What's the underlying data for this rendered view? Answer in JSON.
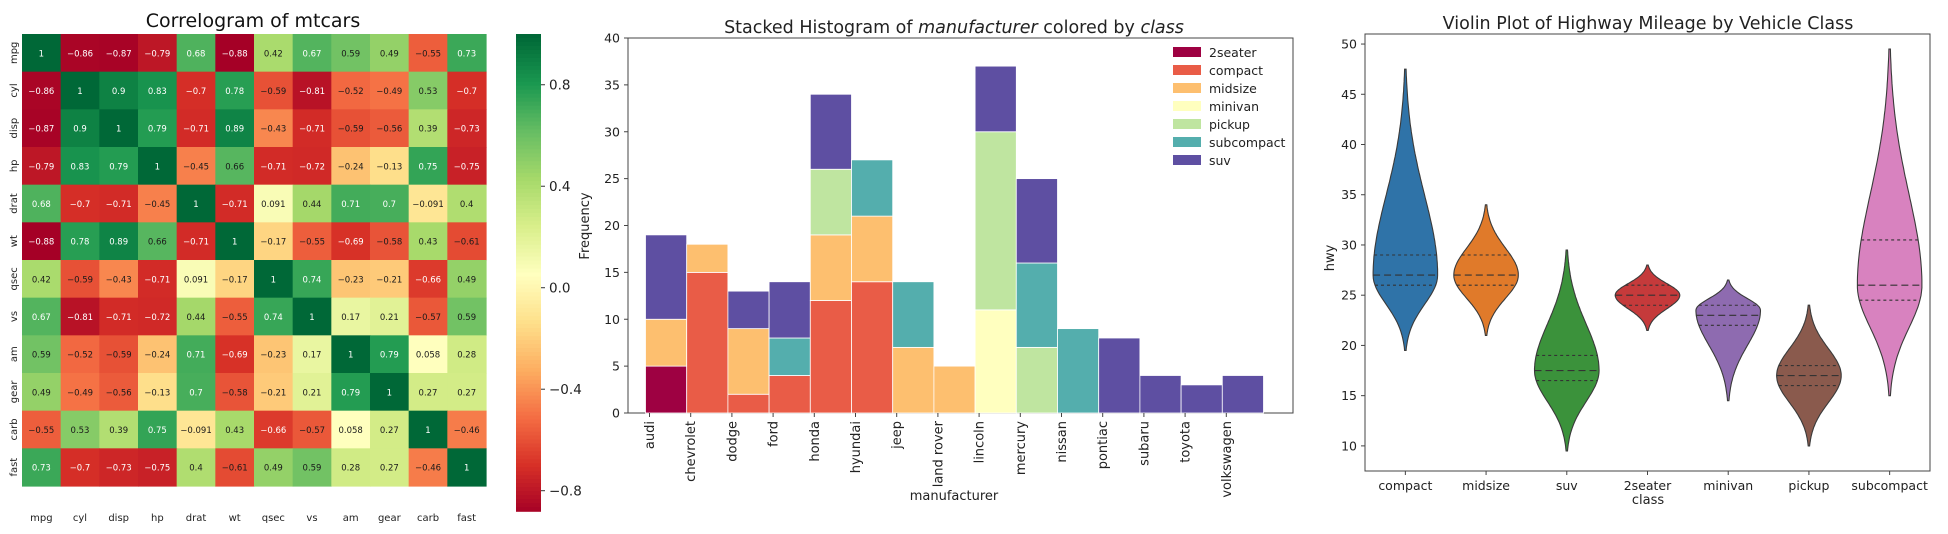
{
  "chart_data": [
    {
      "type": "heatmap",
      "title": "Correlogram of mtcars",
      "variables": [
        "mpg",
        "cyl",
        "disp",
        "hp",
        "drat",
        "wt",
        "qsec",
        "vs",
        "am",
        "gear",
        "carb",
        "fast"
      ],
      "matrix": [
        [
          1,
          -0.86,
          -0.87,
          -0.79,
          0.68,
          -0.88,
          0.42,
          0.67,
          0.59,
          0.49,
          -0.55,
          0.73
        ],
        [
          -0.86,
          1,
          0.9,
          0.83,
          -0.7,
          0.78,
          -0.59,
          -0.81,
          -0.52,
          -0.49,
          0.53,
          -0.7
        ],
        [
          -0.87,
          0.9,
          1,
          0.79,
          -0.71,
          0.89,
          -0.43,
          -0.71,
          -0.59,
          -0.56,
          0.39,
          -0.73
        ],
        [
          -0.79,
          0.83,
          0.79,
          1,
          -0.45,
          0.66,
          -0.71,
          -0.72,
          -0.24,
          -0.13,
          0.75,
          -0.75
        ],
        [
          0.68,
          -0.7,
          -0.71,
          -0.45,
          1,
          -0.71,
          0.091,
          0.44,
          0.71,
          0.7,
          -0.091,
          0.4
        ],
        [
          -0.88,
          0.78,
          0.89,
          0.66,
          -0.71,
          1,
          -0.17,
          -0.55,
          -0.69,
          -0.58,
          0.43,
          -0.61
        ],
        [
          0.42,
          -0.59,
          -0.43,
          -0.71,
          0.091,
          -0.17,
          1,
          0.74,
          -0.23,
          -0.21,
          -0.66,
          0.49
        ],
        [
          0.67,
          -0.81,
          -0.71,
          -0.72,
          0.44,
          -0.55,
          0.74,
          1,
          0.17,
          0.21,
          -0.57,
          0.59
        ],
        [
          0.59,
          -0.52,
          -0.59,
          -0.24,
          0.71,
          -0.69,
          -0.23,
          0.17,
          1,
          0.79,
          0.058,
          0.28
        ],
        [
          0.49,
          -0.49,
          -0.56,
          -0.13,
          0.7,
          -0.58,
          -0.21,
          0.21,
          0.79,
          1,
          0.27,
          0.27
        ],
        [
          -0.55,
          0.53,
          0.39,
          0.75,
          -0.091,
          0.43,
          -0.66,
          -0.57,
          0.058,
          0.27,
          1,
          -0.46
        ],
        [
          0.73,
          -0.7,
          -0.73,
          -0.75,
          0.4,
          -0.61,
          0.49,
          0.59,
          0.28,
          0.27,
          -0.46,
          1
        ]
      ],
      "colormap": "RdYlGn",
      "vmin": -0.88,
      "vmax": 1,
      "colorbar_ticks": [
        0.8,
        0.4,
        0.0,
        -0.4,
        -0.8
      ],
      "colorbar_tick_labels": [
        "0.8",
        "0.4",
        "0.0",
        "−0.4",
        "−0.8"
      ]
    },
    {
      "type": "bar",
      "stacked": true,
      "title_parts": [
        {
          "text": "Stacked Histogram of ",
          "italic": false
        },
        {
          "text": "manufacturer",
          "italic": true
        },
        {
          "text": " colored by ",
          "italic": false
        },
        {
          "text": "class",
          "italic": true
        }
      ],
      "xlabel": "manufacturer",
      "ylabel": "Frequency",
      "ylim": [
        0,
        40
      ],
      "yticks": [
        0,
        5,
        10,
        15,
        20,
        25,
        30,
        35,
        40
      ],
      "categories": [
        "audi",
        "chevrolet",
        "dodge",
        "ford",
        "honda",
        "hyundai",
        "jeep",
        "land rover",
        "lincoln",
        "mercury",
        "nissan",
        "pontiac",
        "subaru",
        "toyota",
        "volkswagen"
      ],
      "series": [
        {
          "name": "2seater",
          "color": "#9e0142",
          "values": [
            5,
            0,
            0,
            0,
            0,
            0,
            0,
            0,
            0,
            0,
            0,
            0,
            0,
            0,
            0
          ]
        },
        {
          "name": "compact",
          "color": "#e95c47",
          "values": [
            0,
            15,
            2,
            4,
            12,
            14,
            0,
            0,
            0,
            0,
            0,
            0,
            0,
            0,
            0
          ]
        },
        {
          "name": "midsize",
          "color": "#fdbf6f",
          "values": [
            5,
            3,
            7,
            0,
            7,
            7,
            7,
            5,
            0,
            0,
            0,
            0,
            0,
            0,
            0
          ]
        },
        {
          "name": "minivan",
          "color": "#ffffbf",
          "values": [
            0,
            0,
            0,
            0,
            0,
            0,
            0,
            0,
            11,
            0,
            0,
            0,
            0,
            0,
            0
          ]
        },
        {
          "name": "pickup",
          "color": "#bfe5a0",
          "values": [
            0,
            0,
            0,
            0,
            7,
            0,
            0,
            0,
            19,
            7,
            0,
            0,
            0,
            0,
            0
          ]
        },
        {
          "name": "subcompact",
          "color": "#54aead",
          "values": [
            0,
            0,
            0,
            4,
            0,
            6,
            7,
            0,
            0,
            9,
            9,
            0,
            0,
            0,
            0
          ]
        },
        {
          "name": "suv",
          "color": "#5e4fa2",
          "values": [
            9,
            0,
            4,
            6,
            8,
            0,
            0,
            0,
            7,
            9,
            0,
            8,
            4,
            3,
            4
          ]
        }
      ],
      "legend_position": "top-right",
      "grid": false
    },
    {
      "type": "violin",
      "title": "Violin Plot of Highway Mileage by Vehicle Class",
      "xlabel": "class",
      "ylabel": "hwy",
      "ylim": [
        7.5,
        51
      ],
      "yticks": [
        10,
        15,
        20,
        25,
        30,
        35,
        40,
        45,
        50
      ],
      "series": [
        {
          "name": "compact",
          "color": "#2f73a8",
          "min": 19.5,
          "max": 47.5,
          "q1": 26,
          "median": 27,
          "q3": 29,
          "mode": 27
        },
        {
          "name": "midsize",
          "color": "#e07a2a",
          "min": 21,
          "max": 34,
          "q1": 26,
          "median": 27,
          "q3": 29,
          "mode": 27
        },
        {
          "name": "suv",
          "color": "#3b923b",
          "min": 9.5,
          "max": 29.5,
          "q1": 16.5,
          "median": 17.5,
          "q3": 19,
          "mode": 17.5
        },
        {
          "name": "2seater",
          "color": "#c53a3b",
          "min": 21.5,
          "max": 28,
          "q1": 24,
          "median": 25,
          "q3": 26,
          "mode": 25
        },
        {
          "name": "minivan",
          "color": "#8e6bb0",
          "min": 14.5,
          "max": 26.5,
          "q1": 22,
          "median": 23,
          "q3": 24,
          "mode": 23.5
        },
        {
          "name": "pickup",
          "color": "#8a5a4d",
          "min": 10,
          "max": 24,
          "q1": 16,
          "median": 17,
          "q3": 18,
          "mode": 17
        },
        {
          "name": "subcompact",
          "color": "#d882bf",
          "min": 15,
          "max": 49.5,
          "q1": 24.5,
          "median": 26,
          "q3": 30.5,
          "mode": 26
        }
      ],
      "grid": false
    }
  ]
}
